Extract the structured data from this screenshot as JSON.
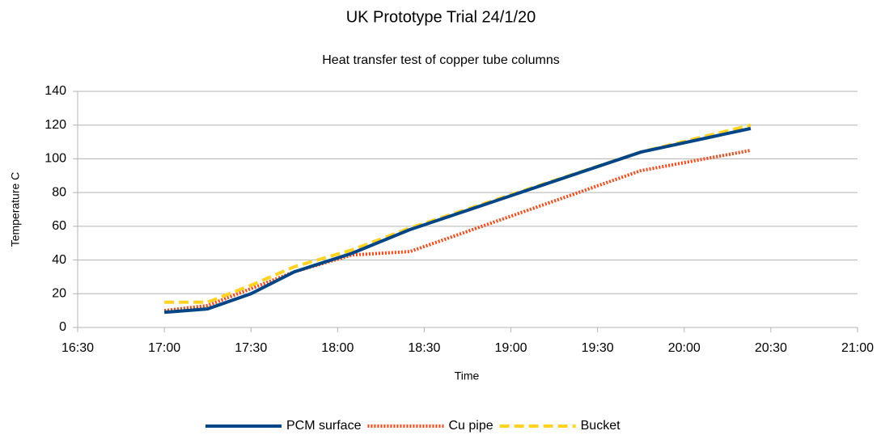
{
  "chart_data": {
    "type": "line",
    "title": "UK Prototype Trial 24/1/20",
    "subtitle": "Heat transfer test of copper tube columns",
    "x_label": "Time",
    "y_label": "Temperature C",
    "x": [
      "17:00",
      "17:15",
      "17:30",
      "17:45",
      "18:05",
      "18:25",
      "19:45",
      "20:23"
    ],
    "series": [
      {
        "name": "PCM surface",
        "color": "#004586",
        "dash": "solid",
        "values": [
          9,
          11,
          20,
          33,
          44,
          58,
          104,
          118
        ]
      },
      {
        "name": "Cu pipe",
        "color": "#ff420e",
        "dash": "dotted",
        "values": [
          10,
          13,
          23,
          33,
          43,
          45,
          93,
          105
        ]
      },
      {
        "name": "Bucket",
        "color": "#ffd320",
        "dash": "dashed",
        "values": [
          15,
          15,
          25,
          36,
          46,
          59,
          104,
          120
        ]
      }
    ],
    "xlim": [
      "16:30",
      "21:00"
    ],
    "xticks": [
      "16:30",
      "17:00",
      "17:30",
      "18:00",
      "18:30",
      "19:00",
      "19:30",
      "20:00",
      "20:30",
      "21:00"
    ],
    "ylim": [
      0,
      140
    ],
    "yticks": [
      0,
      20,
      40,
      60,
      80,
      100,
      120,
      140
    ],
    "grid": true,
    "legend": "bottom"
  }
}
